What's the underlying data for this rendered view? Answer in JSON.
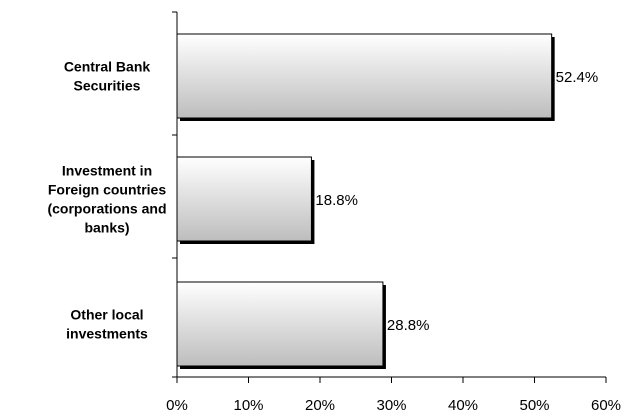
{
  "chart_data": {
    "type": "bar",
    "orientation": "horizontal",
    "categories": [
      [
        "Central Bank",
        "Securities"
      ],
      [
        "Investment in",
        "Foreign countries",
        "(corporations and",
        "banks)"
      ],
      [
        "Other local",
        "investments"
      ]
    ],
    "values": [
      52.4,
      18.8,
      28.8
    ],
    "value_labels": [
      "52.4%",
      "18.8%",
      "28.8%"
    ],
    "xlim": [
      0,
      60
    ],
    "xticks": [
      0,
      10,
      20,
      30,
      40,
      50,
      60
    ],
    "xtick_labels": [
      "0%",
      "10%",
      "20%",
      "30%",
      "40%",
      "50%",
      "60%"
    ],
    "title": "",
    "xlabel": "",
    "ylabel": "",
    "grid": false,
    "legend": "none",
    "bar_fill": [
      "#ffffff",
      "#bdbdbd"
    ],
    "bar_stroke": "#000000"
  }
}
